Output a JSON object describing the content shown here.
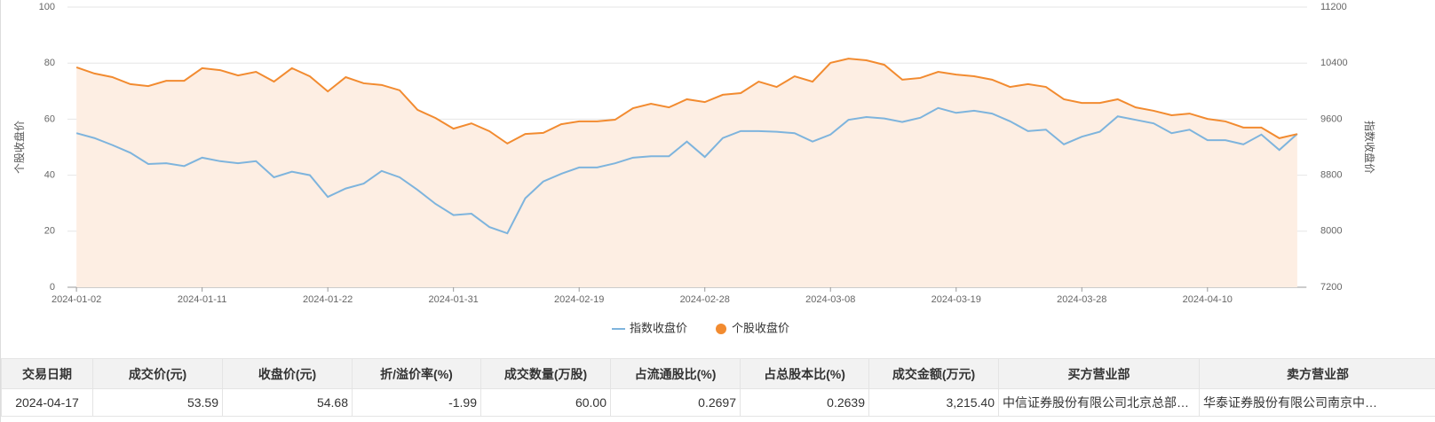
{
  "chart_data": {
    "type": "line",
    "categories": [
      "2024-01-02",
      null,
      null,
      null,
      null,
      null,
      null,
      "2024-01-11",
      null,
      null,
      null,
      null,
      null,
      null,
      "2024-01-22",
      null,
      null,
      null,
      null,
      null,
      null,
      "2024-01-31",
      null,
      null,
      null,
      null,
      null,
      null,
      "2024-02-19",
      null,
      null,
      null,
      null,
      null,
      null,
      "2024-02-28",
      null,
      null,
      null,
      null,
      null,
      null,
      "2024-03-08",
      null,
      null,
      null,
      null,
      null,
      null,
      "2024-03-19",
      null,
      null,
      null,
      null,
      null,
      null,
      "2024-03-28",
      null,
      null,
      null,
      null,
      null,
      null,
      "2024-04-10",
      null,
      null,
      null,
      null,
      null
    ],
    "ylabel": "个股收盘价",
    "y2label": "指数收盘价",
    "ylim": [
      0,
      100
    ],
    "yticks": [
      0,
      20,
      40,
      60,
      80,
      100
    ],
    "y2lim": [
      7200,
      11200
    ],
    "y2ticks": [
      7200,
      8000,
      8800,
      9600,
      10400,
      11200
    ],
    "grid": true,
    "legend": "bottom",
    "series": [
      {
        "name": "指数收盘价",
        "color": "#7eb4dd",
        "axis": "y2",
        "values": [
          9400,
          9330,
          9230,
          9120,
          8960,
          8970,
          8930,
          9050,
          9000,
          8970,
          9000,
          8770,
          8850,
          8800,
          8490,
          8610,
          8680,
          8860,
          8770,
          8590,
          8390,
          8230,
          8250,
          8060,
          7970,
          8470,
          8710,
          8820,
          8910,
          8910,
          8970,
          9050,
          9070,
          9070,
          9280,
          9060,
          9330,
          9430,
          9430,
          9420,
          9400,
          9280,
          9380,
          9590,
          9630,
          9610,
          9560,
          9620,
          9760,
          9690,
          9720,
          9680,
          9570,
          9430,
          9450,
          9240,
          9350,
          9420,
          9640,
          9590,
          9540,
          9400,
          9450,
          9300,
          9300,
          9240,
          9380,
          9160,
          9390
        ]
      },
      {
        "name": "个股收盘价",
        "color": "#f28b30",
        "area": true,
        "fill": "#fdeee3",
        "values": [
          78.5,
          76.3,
          75.0,
          72.5,
          71.8,
          73.7,
          73.7,
          78.2,
          77.5,
          75.6,
          76.9,
          73.4,
          78.2,
          75.3,
          69.9,
          75.0,
          72.8,
          72.2,
          70.3,
          63.3,
          60.4,
          56.6,
          58.5,
          55.7,
          51.3,
          54.7,
          55.1,
          58.2,
          59.2,
          59.2,
          59.8,
          63.9,
          65.5,
          64.2,
          67.1,
          66.1,
          68.7,
          69.3,
          73.4,
          71.5,
          75.3,
          73.4,
          80.1,
          81.6,
          81.0,
          79.4,
          74.1,
          74.7,
          76.9,
          75.9,
          75.3,
          74.1,
          71.5,
          72.5,
          71.5,
          67.1,
          65.8,
          65.8,
          67.1,
          64.2,
          63.0,
          61.4,
          62.0,
          60.1,
          59.2,
          57.0,
          57.0,
          53.2,
          54.68
        ]
      }
    ]
  },
  "table": {
    "header": [
      "交易日期",
      "成交价(元)",
      "收盘价(元)",
      "折/溢价率(%)",
      "成交数量(万股)",
      "占流通股比(%)",
      "占总股本比(%)",
      "成交金额(万元)",
      "买方营业部",
      "卖方营业部"
    ],
    "rows": [
      [
        "2024-04-17",
        "53.59",
        "54.68",
        "-1.99",
        "60.00",
        "0.2697",
        "0.2639",
        "3,215.40",
        "中信证券股份有限公司北京总部…",
        "华泰证券股份有限公司南京中…"
      ]
    ]
  }
}
